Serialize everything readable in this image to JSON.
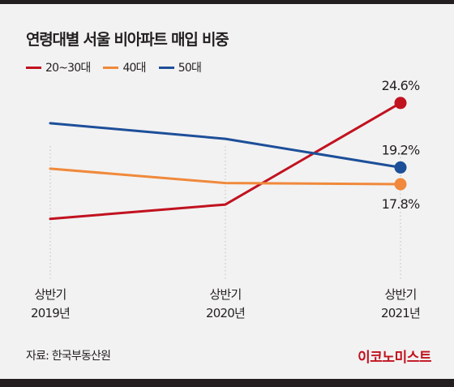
{
  "title": "연령대별 서울 비아파트 매입 비중",
  "source": "자료: 한국부동산원",
  "brand": {
    "name": "이코노미스트",
    "color": "#c1121f"
  },
  "colors": {
    "background": "#f2f2f2",
    "text": "#231f20",
    "gridline": "#bdbdbd"
  },
  "chart_data": {
    "type": "line",
    "categories": [
      [
        "상반기",
        "2019년"
      ],
      [
        "상반기",
        "2020년"
      ],
      [
        "상반기",
        "2021년"
      ]
    ],
    "series": [
      {
        "name": "20~30대",
        "color": "#c1121f",
        "values": [
          14.9,
          16.1,
          24.6
        ],
        "end_label": "24.6%"
      },
      {
        "name": "40대",
        "color": "#f0893b",
        "values": [
          19.1,
          17.9,
          17.8
        ],
        "end_label": "17.8%"
      },
      {
        "name": "50대",
        "color": "#1d4f99",
        "values": [
          22.9,
          21.6,
          19.2
        ],
        "end_label": "19.2%"
      }
    ],
    "end_label_position": {
      "20~30대": "above",
      "40대": "below",
      "50대": "above"
    },
    "grid": "vertical dotted",
    "legend_position": "top-left"
  }
}
